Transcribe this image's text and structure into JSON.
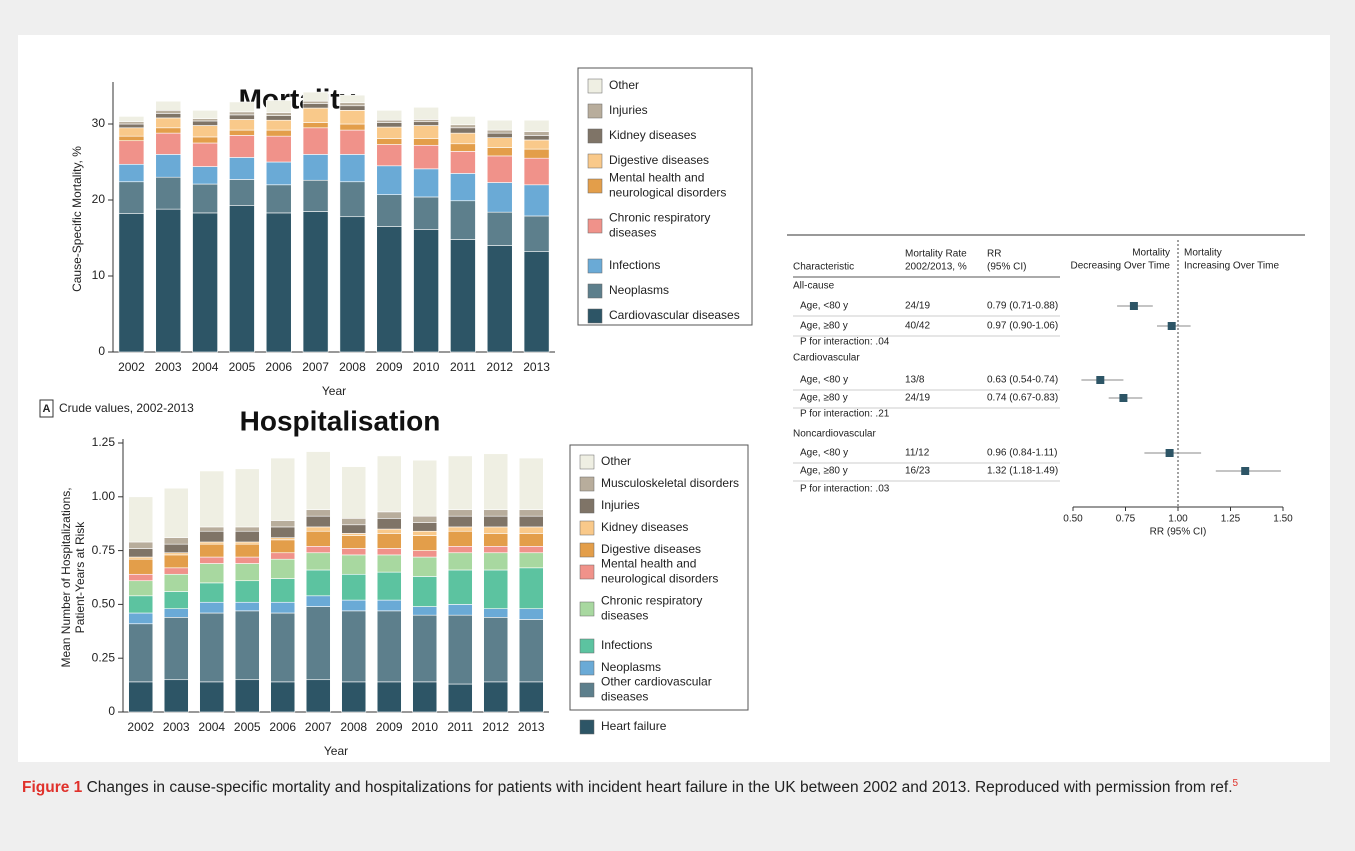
{
  "chart_data": [
    {
      "type": "stacked_bar",
      "title": "Mortality",
      "panel": "A",
      "panel_caption": "Crude values, 2002-2013",
      "xlabel": "Year",
      "ylabel": "Cause-Specific Mortality, %",
      "categories": [
        "2002",
        "2003",
        "2004",
        "2005",
        "2006",
        "2007",
        "2008",
        "2009",
        "2010",
        "2011",
        "2012",
        "2013"
      ],
      "ylim": [
        0,
        35
      ],
      "yticks": [
        0,
        10,
        20,
        30
      ],
      "series": [
        {
          "name": "Cardiovascular diseases",
          "color": "#2d5566",
          "values": [
            18.2,
            18.8,
            18.3,
            19.3,
            18.3,
            18.5,
            17.8,
            16.5,
            16.1,
            14.8,
            14.0,
            13.2
          ]
        },
        {
          "name": "Neoplasms",
          "color": "#5d7f8c",
          "values": [
            4.2,
            4.2,
            3.8,
            3.4,
            3.7,
            4.1,
            4.6,
            4.2,
            4.3,
            5.1,
            4.4,
            4.7
          ]
        },
        {
          "name": "Infections",
          "color": "#6aaad6",
          "values": [
            2.3,
            3.0,
            2.3,
            2.9,
            3.0,
            3.4,
            3.6,
            3.8,
            3.7,
            3.6,
            3.9,
            4.1
          ]
        },
        {
          "name": "Chronic respiratory diseases",
          "color": "#f0928a",
          "values": [
            3.1,
            2.8,
            3.1,
            2.9,
            3.4,
            3.5,
            3.2,
            2.8,
            3.1,
            2.9,
            3.5,
            3.5
          ]
        },
        {
          "name": "Mental health and neurological disorders",
          "color": "#e39e4a",
          "values": [
            0.6,
            0.7,
            0.8,
            0.7,
            0.8,
            0.7,
            0.8,
            0.8,
            0.9,
            1.0,
            1.1,
            1.2
          ]
        },
        {
          "name": "Digestive diseases",
          "color": "#f9c98a",
          "values": [
            1.1,
            1.3,
            1.5,
            1.4,
            1.3,
            1.9,
            1.8,
            1.5,
            1.7,
            1.4,
            1.3,
            1.2
          ]
        },
        {
          "name": "Kidney diseases",
          "color": "#7f7467",
          "values": [
            0.5,
            0.6,
            0.6,
            0.6,
            0.6,
            0.6,
            0.6,
            0.6,
            0.5,
            0.7,
            0.6,
            0.6
          ]
        },
        {
          "name": "Injuries",
          "color": "#b8ad9c",
          "values": [
            0.3,
            0.4,
            0.3,
            0.4,
            0.4,
            0.3,
            0.4,
            0.3,
            0.3,
            0.4,
            0.4,
            0.5
          ]
        },
        {
          "name": "Other",
          "color": "#efefe3",
          "values": [
            0.7,
            1.2,
            1.1,
            1.3,
            1.6,
            1.2,
            1.0,
            1.3,
            1.6,
            1.1,
            1.3,
            1.5
          ]
        }
      ]
    },
    {
      "type": "stacked_bar",
      "title": "Hospitalisation",
      "xlabel": "Year",
      "ylabel": "Mean Number of Hospitalizations, Patient-Years at Risk",
      "categories": [
        "2002",
        "2003",
        "2004",
        "2005",
        "2006",
        "2007",
        "2008",
        "2009",
        "2010",
        "2011",
        "2012",
        "2013"
      ],
      "ylim": [
        0,
        1.25
      ],
      "yticks": [
        0,
        0.25,
        {
          "value": 0.5,
          "label": "0.50"
        },
        0.75,
        {
          "value": 1,
          "label": "1.00"
        },
        1.25
      ],
      "series": [
        {
          "name": "Heart failure",
          "color": "#2d5566",
          "values": [
            0.14,
            0.15,
            0.14,
            0.15,
            0.14,
            0.15,
            0.14,
            0.14,
            0.14,
            0.13,
            0.14,
            0.14
          ]
        },
        {
          "name": "Other cardiovascular diseases",
          "color": "#5d7f8c",
          "values": [
            0.27,
            0.29,
            0.32,
            0.32,
            0.32,
            0.34,
            0.33,
            0.33,
            0.31,
            0.32,
            0.3,
            0.29
          ]
        },
        {
          "name": "Neoplasms",
          "color": "#6aaad6",
          "values": [
            0.05,
            0.04,
            0.05,
            0.04,
            0.05,
            0.05,
            0.05,
            0.05,
            0.04,
            0.05,
            0.04,
            0.05
          ]
        },
        {
          "name": "Infections",
          "color": "#5cc3a0",
          "values": [
            0.08,
            0.08,
            0.09,
            0.1,
            0.11,
            0.12,
            0.12,
            0.13,
            0.14,
            0.16,
            0.18,
            0.19
          ]
        },
        {
          "name": "Chronic respiratory diseases",
          "color": "#a8d8a0",
          "values": [
            0.07,
            0.08,
            0.09,
            0.08,
            0.09,
            0.08,
            0.09,
            0.08,
            0.09,
            0.08,
            0.08,
            0.07
          ]
        },
        {
          "name": "Mental health and neurological disorders",
          "color": "#f0928a",
          "values": [
            0.03,
            0.03,
            0.03,
            0.03,
            0.03,
            0.03,
            0.03,
            0.03,
            0.03,
            0.03,
            0.03,
            0.03
          ]
        },
        {
          "name": "Digestive diseases",
          "color": "#e39e4a",
          "values": [
            0.07,
            0.06,
            0.06,
            0.06,
            0.06,
            0.07,
            0.06,
            0.07,
            0.07,
            0.07,
            0.06,
            0.06
          ]
        },
        {
          "name": "Kidney diseases",
          "color": "#f9c98a",
          "values": [
            0.01,
            0.01,
            0.01,
            0.01,
            0.01,
            0.02,
            0.01,
            0.02,
            0.02,
            0.02,
            0.03,
            0.03
          ]
        },
        {
          "name": "Injuries",
          "color": "#7f7467",
          "values": [
            0.04,
            0.04,
            0.05,
            0.05,
            0.05,
            0.05,
            0.04,
            0.05,
            0.04,
            0.05,
            0.05,
            0.05
          ]
        },
        {
          "name": "Musculoskeletal disorders",
          "color": "#b8ad9c",
          "values": [
            0.03,
            0.03,
            0.02,
            0.02,
            0.03,
            0.03,
            0.03,
            0.03,
            0.03,
            0.03,
            0.03,
            0.03
          ]
        },
        {
          "name": "Other",
          "color": "#efefe3",
          "values": [
            0.21,
            0.23,
            0.26,
            0.27,
            0.29,
            0.27,
            0.24,
            0.26,
            0.26,
            0.25,
            0.26,
            0.24
          ]
        }
      ]
    },
    {
      "type": "forest",
      "xlabel": "RR (95% CI)",
      "color": "#2d5566",
      "columns": [
        [
          "Characteristic"
        ],
        [
          "Mortality Rate",
          "2002/2013, %"
        ],
        [
          "RR",
          "(95% CI)"
        ]
      ],
      "direction_left": [
        "Mortality",
        "Decreasing Over Time"
      ],
      "direction_right": [
        "Mortality",
        "Increasing Over Time"
      ],
      "xlim": [
        0.5,
        1.5
      ],
      "xticks": [
        {
          "value": 0.5,
          "label": "0.50"
        },
        0.75,
        {
          "value": 1,
          "label": "1.00"
        },
        1.25,
        {
          "value": 1.5,
          "label": "1.50"
        }
      ],
      "reference": 1,
      "rows": [
        {
          "label": "All-cause"
        },
        {
          "label": "Age, <80 y",
          "rate": "24/19",
          "ci_label": "0.79 (0.71-0.88)",
          "rr": 0.79,
          "lo": 0.71,
          "hi": 0.88
        },
        {
          "label": "Age, ≥80 y",
          "rate": "40/42",
          "ci_label": "0.97 (0.90-1.06)",
          "rr": 0.97,
          "lo": 0.9,
          "hi": 1.06
        },
        {
          "label": "P for interaction: .04"
        },
        {
          "label": "Cardiovascular"
        },
        {
          "label": "Age, <80 y",
          "rate": "13/8",
          "ci_label": "0.63 (0.54-0.74)",
          "rr": 0.63,
          "lo": 0.54,
          "hi": 0.74
        },
        {
          "label": "Age, ≥80 y",
          "rate": "24/19",
          "ci_label": "0.74 (0.67-0.83)",
          "rr": 0.74,
          "lo": 0.67,
          "hi": 0.83
        },
        {
          "label": "P for interaction: .21"
        },
        {
          "label": "Noncardiovascular"
        },
        {
          "label": "Age, <80 y",
          "rate": "11/12",
          "ci_label": "0.96 (0.84-1.11)",
          "rr": 0.96,
          "lo": 0.84,
          "hi": 1.11
        },
        {
          "label": "Age, ≥80 y",
          "rate": "16/23",
          "ci_label": "1.32 (1.18-1.49)",
          "rr": 1.32,
          "lo": 1.18,
          "hi": 1.49
        },
        {
          "label": "P for interaction: .03"
        }
      ]
    }
  ],
  "figure": {
    "label": "Figure 1",
    "caption": "Changes in cause-specific mortality and hospitalizations for patients with incident heart failure in the UK between 2002 and 2013.",
    "credit": "Reproduced with permission from ref.",
    "ref": "5"
  }
}
